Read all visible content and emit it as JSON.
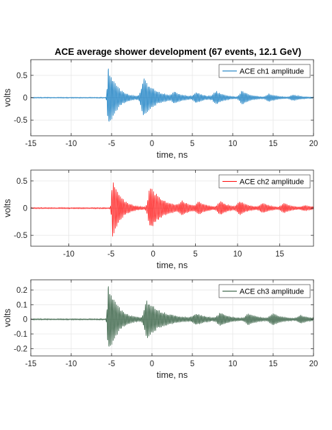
{
  "figure": {
    "title": "ACE average shower development (67 events, 12.1 GeV)"
  },
  "chart_data": [
    {
      "type": "line",
      "title": "ACE average shower development (67 events, 12.1 GeV)",
      "xlabel": "time, ns",
      "ylabel": "volts",
      "xlim": [
        -15,
        20
      ],
      "ylim": [
        -0.85,
        0.85
      ],
      "xticks": [
        -15,
        -10,
        -5,
        0,
        5,
        10,
        15,
        20
      ],
      "yticks": [
        -0.5,
        0,
        0.5
      ],
      "grid": true,
      "legend": "top-right",
      "series": [
        {
          "name": "ACE ch1 amplitude",
          "color": "#0072BD",
          "noise": 0.01,
          "bursts": [
            {
              "t": -5.4,
              "amp": 0.72,
              "rise": 0.15,
              "decay": 1.1
            },
            {
              "t": -1.0,
              "amp": 0.42,
              "rise": 0.4,
              "decay": 1.6
            },
            {
              "t": 2.8,
              "amp": 0.1,
              "rise": 0.3,
              "decay": 1.0
            },
            {
              "t": 5.5,
              "amp": 0.12,
              "rise": 0.4,
              "decay": 0.9
            },
            {
              "t": 8.0,
              "amp": 0.14,
              "rise": 0.5,
              "decay": 1.0
            },
            {
              "t": 11.2,
              "amp": 0.15,
              "rise": 0.4,
              "decay": 1.0
            },
            {
              "t": 14.5,
              "amp": 0.08,
              "rise": 0.4,
              "decay": 1.0
            },
            {
              "t": 17.5,
              "amp": 0.06,
              "rise": 0.4,
              "decay": 1.0
            }
          ]
        }
      ]
    },
    {
      "type": "line",
      "xlabel": "time, ns",
      "ylabel": "volts",
      "xlim": [
        -14.5,
        19
      ],
      "ylim": [
        -0.7,
        0.7
      ],
      "xticks": [
        -10,
        -5,
        0,
        5,
        10,
        15
      ],
      "yticks": [
        -0.5,
        0,
        0.5
      ],
      "grid": true,
      "legend": "top-right",
      "series": [
        {
          "name": "ACE ch2 amplitude",
          "color": "#FF0000",
          "noise": 0.01,
          "bursts": [
            {
              "t": -4.8,
              "amp": 0.56,
              "rise": 0.15,
              "decay": 1.0
            },
            {
              "t": -0.3,
              "amp": 0.4,
              "rise": 0.35,
              "decay": 1.6
            },
            {
              "t": 3.5,
              "amp": 0.1,
              "rise": 0.4,
              "decay": 1.0
            },
            {
              "t": 5.5,
              "amp": 0.1,
              "rise": 0.4,
              "decay": 0.9
            },
            {
              "t": 8.0,
              "amp": 0.12,
              "rise": 0.4,
              "decay": 1.0
            },
            {
              "t": 10.3,
              "amp": 0.12,
              "rise": 0.4,
              "decay": 1.0
            },
            {
              "t": 13.0,
              "amp": 0.08,
              "rise": 0.4,
              "decay": 1.0
            },
            {
              "t": 15.5,
              "amp": 0.08,
              "rise": 0.4,
              "decay": 1.0
            },
            {
              "t": 18.0,
              "amp": 0.04,
              "rise": 0.4,
              "decay": 1.0
            }
          ]
        }
      ]
    },
    {
      "type": "line",
      "xlabel": "time, ns",
      "ylabel": "volts",
      "xlim": [
        -15,
        20
      ],
      "ylim": [
        -0.25,
        0.27
      ],
      "xticks": [
        -15,
        -10,
        -5,
        0,
        5,
        10,
        15,
        20
      ],
      "yticks": [
        -0.2,
        -0.1,
        0,
        0.1,
        0.2
      ],
      "grid": true,
      "legend": "top-right",
      "series": [
        {
          "name": "ACE ch3 amplitude",
          "color": "#1F4E2E",
          "noise": 0.004,
          "bursts": [
            {
              "t": -5.4,
              "amp": 0.25,
              "rise": 0.15,
              "decay": 1.2
            },
            {
              "t": -0.6,
              "amp": 0.13,
              "rise": 0.4,
              "decay": 2.0
            },
            {
              "t": 5.5,
              "amp": 0.035,
              "rise": 0.5,
              "decay": 1.2
            },
            {
              "t": 8.5,
              "amp": 0.04,
              "rise": 0.5,
              "decay": 1.2
            },
            {
              "t": 12.0,
              "amp": 0.035,
              "rise": 0.5,
              "decay": 1.2
            },
            {
              "t": 15.0,
              "amp": 0.035,
              "rise": 0.5,
              "decay": 1.2
            },
            {
              "t": 18.5,
              "amp": 0.025,
              "rise": 0.5,
              "decay": 1.0
            }
          ]
        }
      ]
    }
  ]
}
